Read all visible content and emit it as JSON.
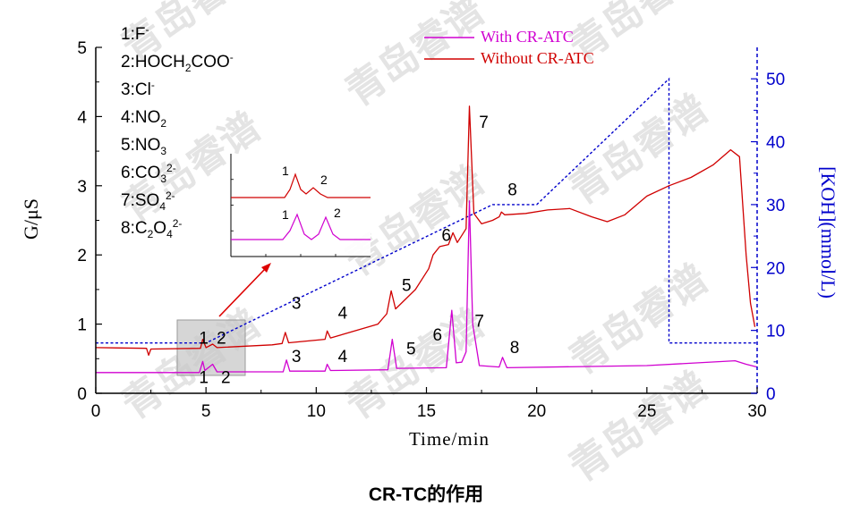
{
  "chart_data": {
    "type": "line",
    "caption": "CR-TC的作用",
    "xlabel": "Time/min",
    "ylabel": "G/μS",
    "y2label": "[KOH](mmol/L)",
    "xlim": [
      0,
      30
    ],
    "ylim": [
      0,
      5
    ],
    "y2lim": [
      0,
      55
    ],
    "x_ticks": [
      "0",
      "5",
      "10",
      "15",
      "20",
      "25",
      "30"
    ],
    "y_ticks": [
      "0",
      "1",
      "2",
      "3",
      "4",
      "5"
    ],
    "y2_ticks": [
      "0",
      "10",
      "20",
      "30",
      "40",
      "50"
    ],
    "legend": {
      "position": "top-right"
    },
    "colors": {
      "with": "#d000d0",
      "without": "#d00000",
      "koh": "#0000cc",
      "arrow": "#dd0000"
    },
    "series": [
      {
        "name": "With CR-ATC",
        "color": "#d000d0",
        "points": [
          [
            0,
            0.3
          ],
          [
            4.7,
            0.3
          ],
          [
            4.85,
            0.46
          ],
          [
            4.95,
            0.33
          ],
          [
            5.3,
            0.42
          ],
          [
            5.5,
            0.31
          ],
          [
            8.5,
            0.31
          ],
          [
            8.65,
            0.48
          ],
          [
            8.8,
            0.32
          ],
          [
            10.4,
            0.32
          ],
          [
            10.5,
            0.42
          ],
          [
            10.65,
            0.33
          ],
          [
            13.25,
            0.34
          ],
          [
            13.45,
            0.78
          ],
          [
            13.65,
            0.36
          ],
          [
            15.9,
            0.37
          ],
          [
            16.15,
            1.2
          ],
          [
            16.35,
            0.44
          ],
          [
            16.6,
            0.45
          ],
          [
            16.8,
            0.6
          ],
          [
            16.95,
            2.78
          ],
          [
            17.1,
            1.0
          ],
          [
            17.4,
            0.4
          ],
          [
            18.3,
            0.38
          ],
          [
            18.45,
            0.52
          ],
          [
            18.65,
            0.37
          ],
          [
            25,
            0.4
          ],
          [
            29,
            0.47
          ],
          [
            29.5,
            0.42
          ],
          [
            30,
            0.38
          ]
        ]
      },
      {
        "name": "Without CR-ATC",
        "color": "#d00000",
        "points": [
          [
            0,
            0.66
          ],
          [
            2.3,
            0.65
          ],
          [
            2.4,
            0.55
          ],
          [
            2.5,
            0.64
          ],
          [
            4.75,
            0.65
          ],
          [
            4.85,
            0.78
          ],
          [
            5.0,
            0.66
          ],
          [
            5.3,
            0.71
          ],
          [
            5.5,
            0.66
          ],
          [
            8.0,
            0.7
          ],
          [
            8.45,
            0.72
          ],
          [
            8.6,
            0.88
          ],
          [
            8.75,
            0.73
          ],
          [
            10.4,
            0.78
          ],
          [
            10.5,
            0.9
          ],
          [
            10.65,
            0.8
          ],
          [
            12.8,
            1.0
          ],
          [
            13.2,
            1.15
          ],
          [
            13.4,
            1.48
          ],
          [
            13.6,
            1.22
          ],
          [
            14.5,
            1.5
          ],
          [
            15.1,
            1.8
          ],
          [
            15.3,
            2.0
          ],
          [
            15.6,
            2.12
          ],
          [
            16.0,
            2.15
          ],
          [
            16.2,
            2.32
          ],
          [
            16.4,
            2.18
          ],
          [
            16.8,
            2.38
          ],
          [
            16.95,
            4.15
          ],
          [
            17.15,
            2.6
          ],
          [
            17.5,
            2.45
          ],
          [
            18.0,
            2.5
          ],
          [
            18.3,
            2.55
          ],
          [
            18.4,
            2.62
          ],
          [
            18.55,
            2.58
          ],
          [
            19.5,
            2.6
          ],
          [
            20.5,
            2.65
          ],
          [
            21.5,
            2.67
          ],
          [
            22.5,
            2.55
          ],
          [
            23.2,
            2.48
          ],
          [
            24.0,
            2.58
          ],
          [
            25.0,
            2.85
          ],
          [
            26.0,
            3.0
          ],
          [
            27.0,
            3.12
          ],
          [
            28.0,
            3.3
          ],
          [
            28.8,
            3.52
          ],
          [
            29.2,
            3.42
          ],
          [
            29.5,
            2.0
          ],
          [
            29.7,
            1.3
          ],
          [
            29.9,
            0.96
          ]
        ]
      },
      {
        "name": "[KOH]",
        "axis": "right",
        "color": "#0000cc",
        "dashed": true,
        "points": [
          [
            0,
            8
          ],
          [
            5,
            8
          ],
          [
            18,
            30
          ],
          [
            20,
            30
          ],
          [
            26,
            50
          ],
          [
            26,
            8
          ],
          [
            30,
            8
          ]
        ]
      }
    ],
    "peak_labels_with": [
      "1",
      "2",
      "3",
      "4",
      "5",
      "6",
      "7",
      "8"
    ],
    "peak_labels_without": [
      "1",
      "2",
      "3",
      "4",
      "5",
      "6",
      "7",
      "8"
    ],
    "ion_legend": [
      {
        "num": "1:",
        "parts": [
          [
            "F",
            ""
          ],
          [
            "-",
            "sup"
          ]
        ]
      },
      {
        "num": "2:",
        "parts": [
          [
            "HOCH",
            ""
          ],
          [
            "2",
            "sub"
          ],
          [
            "COO",
            ""
          ],
          [
            "-",
            "sup"
          ]
        ]
      },
      {
        "num": "3:",
        "parts": [
          [
            "Cl",
            ""
          ],
          [
            "-",
            "sup"
          ]
        ]
      },
      {
        "num": "4:",
        "parts": [
          [
            "NO",
            ""
          ],
          [
            "2",
            "sub"
          ]
        ]
      },
      {
        "num": "5:",
        "parts": [
          [
            "NO",
            ""
          ],
          [
            "3",
            "sub"
          ]
        ]
      },
      {
        "num": "6:",
        "parts": [
          [
            "CO",
            ""
          ],
          [
            "3",
            "sub"
          ],
          [
            "2-",
            "sup"
          ]
        ]
      },
      {
        "num": "7:",
        "parts": [
          [
            "SO",
            ""
          ],
          [
            "4",
            "sub"
          ],
          [
            "2-",
            "sup"
          ]
        ]
      },
      {
        "num": "8:",
        "parts": [
          [
            "C",
            ""
          ],
          [
            "2",
            "sub"
          ],
          [
            "O",
            ""
          ],
          [
            "4",
            "sub"
          ],
          [
            "2-",
            "sup"
          ]
        ]
      }
    ],
    "inset": {
      "peak_labels_top": [
        "1",
        "2"
      ],
      "peak_labels_bottom": [
        "1",
        "2"
      ]
    },
    "watermark": "青岛睿谱"
  }
}
